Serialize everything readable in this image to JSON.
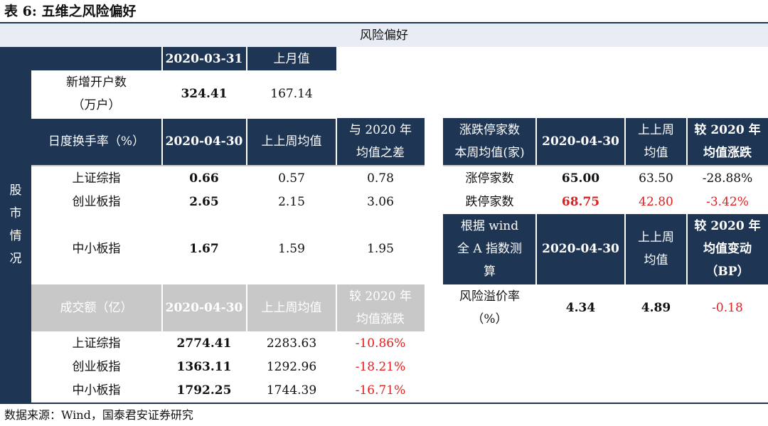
{
  "title": "表 6: 五维之风险偏好",
  "header": "风险偏好",
  "side_label": [
    "股",
    "市",
    "情",
    "况"
  ],
  "accounts": {
    "col1": "2020-03-31",
    "col2": "上月值",
    "row_label_1": "新增开户数",
    "row_label_2": "（万户）",
    "value_current": "324.41",
    "value_prev": "167.14"
  },
  "turnover": {
    "header_label": "日度换手率（%）",
    "col1": "2020-04-30",
    "col2": "上上周均值",
    "col3_line1": "与 2020 年",
    "col3_line2": "均值之差",
    "rows": [
      {
        "name": "上证综指",
        "current": "0.66",
        "prev": "0.57",
        "diff": "0.78"
      },
      {
        "name": "创业板指",
        "current": "2.65",
        "prev": "2.15",
        "diff": "3.06"
      },
      {
        "name": "中小板指",
        "current": "1.67",
        "prev": "1.59",
        "diff": "1.95"
      }
    ]
  },
  "volume": {
    "header_label": "成交额（亿）",
    "col1": "2020-04-30",
    "col2": "上上周均值",
    "col3_line1": "较 2020 年",
    "col3_line2": "均值涨跌",
    "rows": [
      {
        "name": "上证综指",
        "current": "2774.41",
        "prev": "2283.63",
        "change": "-10.86%"
      },
      {
        "name": "创业板指",
        "current": "1363.11",
        "prev": "1292.96",
        "change": "-18.21%"
      },
      {
        "name": "中小板指",
        "current": "1792.25",
        "prev": "1744.39",
        "change": "-16.71%"
      }
    ]
  },
  "limits": {
    "header_line1": "涨跌停家数",
    "header_line2": "本周均值(家)",
    "col1": "2020-04-30",
    "col2_line1": "上上周",
    "col2_line2": "均值",
    "col3_line1": "较 2020 年",
    "col3_line2": "均值涨跌",
    "rows": [
      {
        "name": "涨停家数",
        "current": "65.00",
        "prev": "63.50",
        "change": "-28.88%"
      },
      {
        "name": "跌停家数",
        "current": "68.75",
        "prev": "42.80",
        "change": "-3.42%"
      }
    ]
  },
  "premium": {
    "header_line1": "根据 wind",
    "header_line2": "全 A 指数测",
    "header_line3": "算",
    "col1": "2020-04-30",
    "col2_line1": "上上周",
    "col2_line2": "均值",
    "col3_line1": "较 2020 年",
    "col3_line2": "均值变动",
    "col3_line3": "（BP）",
    "row_name_1": "风险溢价率",
    "row_name_2": "（%）",
    "current": "4.34",
    "prev": "4.89",
    "change": "-0.18"
  },
  "source": "数据来源：Wind，国泰君安证券研究"
}
